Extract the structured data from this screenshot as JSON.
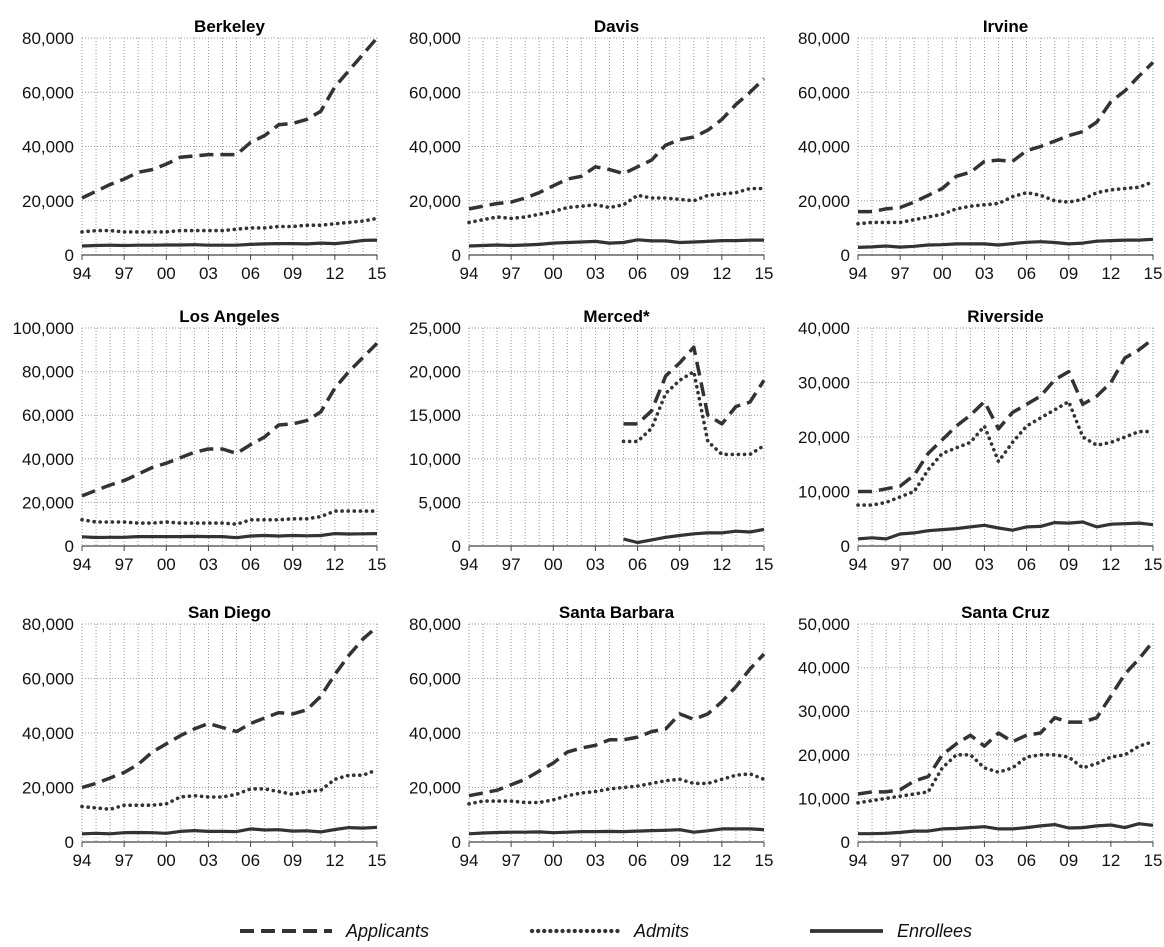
{
  "chart_data": {
    "type": "line",
    "legend": {
      "placement": "bottom",
      "entries": [
        {
          "name": "Applicants",
          "style": "dashed"
        },
        {
          "name": "Admits",
          "style": "dotted"
        },
        {
          "name": "Enrollees",
          "style": "solid"
        }
      ]
    },
    "x_tick_labels": [
      "94",
      "97",
      "00",
      "03",
      "06",
      "09",
      "12",
      "15"
    ],
    "years": [
      1994,
      1995,
      1996,
      1997,
      1998,
      1999,
      2000,
      2001,
      2002,
      2003,
      2004,
      2005,
      2006,
      2007,
      2008,
      2009,
      2010,
      2011,
      2012,
      2013,
      2014,
      2015
    ],
    "grid": true,
    "line_color": "#333333",
    "panels": [
      {
        "title": "Berkeley",
        "ylim": [
          0,
          80000
        ],
        "y_tick_labels": [
          "0",
          "20,000",
          "40,000",
          "60,000",
          "80,000"
        ],
        "series": {
          "applicants": [
            21000,
            23500,
            26000,
            28000,
            30500,
            31500,
            33500,
            36000,
            36500,
            37000,
            37000,
            37000,
            41500,
            44000,
            48000,
            48500,
            50000,
            53000,
            62000,
            68000,
            74000,
            80000
          ],
          "admits": [
            8500,
            9000,
            9000,
            8500,
            8500,
            8500,
            8500,
            9000,
            9000,
            9000,
            9000,
            9500,
            10000,
            10000,
            10500,
            10500,
            11000,
            11000,
            11500,
            12000,
            12500,
            13500
          ],
          "enrollees": [
            3300,
            3500,
            3600,
            3500,
            3600,
            3600,
            3700,
            3700,
            3800,
            3600,
            3600,
            3600,
            3900,
            4100,
            4200,
            4200,
            4100,
            4400,
            4200,
            4700,
            5400,
            5500
          ]
        }
      },
      {
        "title": "Davis",
        "ylim": [
          0,
          80000
        ],
        "y_tick_labels": [
          "0",
          "20,000",
          "40,000",
          "60,000",
          "80,000"
        ],
        "series": {
          "applicants": [
            17000,
            18000,
            19000,
            19500,
            21000,
            23000,
            25500,
            28000,
            29000,
            32500,
            31500,
            30000,
            32500,
            35000,
            40500,
            42500,
            43500,
            46000,
            50000,
            55500,
            60000,
            65000
          ],
          "admits": [
            12000,
            13000,
            14000,
            13500,
            14000,
            15000,
            16000,
            17500,
            18000,
            18500,
            17500,
            18500,
            22000,
            21000,
            21000,
            20500,
            20000,
            22000,
            22500,
            23000,
            24500,
            24500
          ],
          "enrollees": [
            3300,
            3500,
            3700,
            3500,
            3700,
            3900,
            4400,
            4600,
            4800,
            5000,
            4400,
            4600,
            5600,
            5200,
            5200,
            4600,
            4800,
            5000,
            5300,
            5300,
            5500,
            5500
          ]
        }
      },
      {
        "title": "Irvine",
        "ylim": [
          0,
          80000
        ],
        "y_tick_labels": [
          "0",
          "20,000",
          "40,000",
          "60,000",
          "80,000"
        ],
        "series": {
          "applicants": [
            16000,
            16000,
            17000,
            17500,
            19500,
            22000,
            24500,
            29000,
            30500,
            34500,
            35000,
            34500,
            38500,
            40000,
            42000,
            44000,
            45500,
            49000,
            56500,
            60500,
            66000,
            71000
          ],
          "admits": [
            11500,
            12000,
            12000,
            12000,
            13000,
            14000,
            15000,
            17000,
            18000,
            18500,
            19000,
            21500,
            23000,
            22000,
            20000,
            19500,
            20500,
            23000,
            24000,
            24500,
            25000,
            27000
          ],
          "enrollees": [
            2800,
            3000,
            3300,
            2900,
            3200,
            3700,
            3800,
            4100,
            4100,
            4100,
            3700,
            4200,
            4700,
            4900,
            4600,
            4100,
            4400,
            5100,
            5300,
            5500,
            5500,
            5800
          ]
        }
      },
      {
        "title": "Los Angeles",
        "ylim": [
          0,
          100000
        ],
        "y_tick_labels": [
          "0",
          "20,000",
          "40,000",
          "60,000",
          "80,000",
          "100,000"
        ],
        "series": {
          "applicants": [
            23000,
            25500,
            28000,
            30000,
            33000,
            36000,
            38000,
            40500,
            43000,
            44500,
            44500,
            42500,
            46500,
            50000,
            55500,
            56000,
            57500,
            61500,
            72500,
            80000,
            86500,
            93000
          ],
          "admits": [
            12000,
            11000,
            11000,
            11000,
            10500,
            10500,
            11000,
            10500,
            10500,
            10500,
            10500,
            10000,
            12000,
            12000,
            12000,
            12500,
            12500,
            13500,
            16000,
            16000,
            16000,
            16000
          ],
          "enrollees": [
            4200,
            3900,
            4000,
            4000,
            4300,
            4300,
            4300,
            4300,
            4400,
            4300,
            4300,
            3800,
            4600,
            4800,
            4600,
            4800,
            4700,
            4800,
            5700,
            5500,
            5600,
            5700
          ]
        }
      },
      {
        "title": "Merced*",
        "ylim": [
          0,
          25000
        ],
        "y_tick_labels": [
          "0",
          "5,000",
          "10,000",
          "15,000",
          "20,000",
          "25,000"
        ],
        "series": {
          "applicants": [
            null,
            null,
            null,
            null,
            null,
            null,
            null,
            null,
            null,
            null,
            null,
            14000,
            14000,
            15500,
            19500,
            21000,
            22800,
            15000,
            14000,
            16000,
            16500,
            19000
          ],
          "admits": [
            null,
            null,
            null,
            null,
            null,
            null,
            null,
            null,
            null,
            null,
            null,
            12000,
            12000,
            13500,
            17500,
            19000,
            20000,
            12000,
            10500,
            10500,
            10500,
            11500
          ],
          "enrollees": [
            null,
            null,
            null,
            null,
            null,
            null,
            null,
            null,
            null,
            null,
            null,
            800,
            400,
            700,
            1000,
            1200,
            1400,
            1500,
            1500,
            1700,
            1600,
            1900
          ]
        }
      },
      {
        "title": "Riverside",
        "ylim": [
          0,
          40000
        ],
        "y_tick_labels": [
          "0",
          "10,000",
          "20,000",
          "30,000",
          "40,000"
        ],
        "series": {
          "applicants": [
            10000,
            10000,
            10500,
            11000,
            13000,
            17000,
            19500,
            22000,
            24000,
            26500,
            21500,
            24500,
            26000,
            27500,
            30500,
            32000,
            26000,
            27500,
            30000,
            34500,
            36000,
            38000
          ],
          "admits": [
            7500,
            7500,
            8000,
            9000,
            10000,
            14000,
            17000,
            18000,
            19000,
            22000,
            15500,
            19000,
            22000,
            23500,
            25000,
            26500,
            20000,
            18500,
            19000,
            20000,
            21000,
            21000
          ],
          "enrollees": [
            1300,
            1500,
            1300,
            2200,
            2400,
            2800,
            3000,
            3200,
            3500,
            3800,
            3300,
            2900,
            3500,
            3600,
            4300,
            4200,
            4400,
            3500,
            4000,
            4100,
            4200,
            3900
          ]
        }
      },
      {
        "title": "San Diego",
        "ylim": [
          0,
          80000
        ],
        "y_tick_labels": [
          "0",
          "20,000",
          "40,000",
          "60,000",
          "80,000"
        ],
        "series": {
          "applicants": [
            20000,
            21500,
            23500,
            25500,
            28500,
            33000,
            36000,
            39000,
            41500,
            43500,
            42000,
            40500,
            43500,
            45500,
            47500,
            47000,
            48500,
            53500,
            61500,
            68500,
            74500,
            79000
          ],
          "admits": [
            13000,
            12500,
            12000,
            13500,
            13500,
            13500,
            14000,
            16500,
            17000,
            16500,
            16500,
            17500,
            19500,
            19500,
            18500,
            17500,
            18500,
            19000,
            23000,
            24500,
            24500,
            26500
          ],
          "enrollees": [
            3000,
            3200,
            3000,
            3400,
            3500,
            3400,
            3200,
            3900,
            4200,
            3900,
            3900,
            3800,
            4800,
            4400,
            4500,
            4000,
            4100,
            3700,
            4600,
            5300,
            5100,
            5400
          ]
        }
      },
      {
        "title": "Santa Barbara",
        "ylim": [
          0,
          80000
        ],
        "y_tick_labels": [
          "0",
          "20,000",
          "40,000",
          "60,000",
          "80,000"
        ],
        "series": {
          "applicants": [
            17000,
            18000,
            19000,
            21000,
            23000,
            26000,
            29000,
            33000,
            34500,
            35500,
            37500,
            37500,
            38500,
            40500,
            41500,
            47000,
            45000,
            47000,
            51500,
            57000,
            63500,
            69000
          ],
          "admits": [
            14000,
            15000,
            15000,
            15000,
            14500,
            14500,
            15500,
            17000,
            18000,
            18500,
            19500,
            20000,
            20500,
            21500,
            22500,
            23000,
            21500,
            21500,
            23000,
            24500,
            25000,
            23000
          ],
          "enrollees": [
            3000,
            3300,
            3500,
            3600,
            3600,
            3700,
            3400,
            3600,
            3800,
            3800,
            3900,
            3800,
            4000,
            4200,
            4300,
            4500,
            3600,
            4100,
            4800,
            4800,
            4800,
            4500
          ]
        }
      },
      {
        "title": "Santa Cruz",
        "ylim": [
          0,
          50000
        ],
        "y_tick_labels": [
          "0",
          "10,000",
          "20,000",
          "30,000",
          "40,000",
          "50,000"
        ],
        "series": {
          "applicants": [
            11000,
            11500,
            11500,
            12000,
            14000,
            15000,
            20000,
            22500,
            24500,
            22000,
            25000,
            23000,
            24500,
            25000,
            28500,
            27500,
            27500,
            28500,
            33500,
            38500,
            42000,
            46000
          ],
          "admits": [
            9000,
            9500,
            10000,
            10500,
            11000,
            11500,
            17000,
            20000,
            20000,
            17000,
            16000,
            17000,
            19500,
            20000,
            20000,
            19500,
            17000,
            18000,
            19500,
            20000,
            22000,
            23000
          ],
          "enrollees": [
            1900,
            1900,
            2000,
            2200,
            2500,
            2500,
            3000,
            3100,
            3300,
            3500,
            3000,
            3000,
            3300,
            3700,
            4000,
            3200,
            3300,
            3700,
            3900,
            3300,
            4200,
            3800
          ]
        }
      }
    ]
  }
}
